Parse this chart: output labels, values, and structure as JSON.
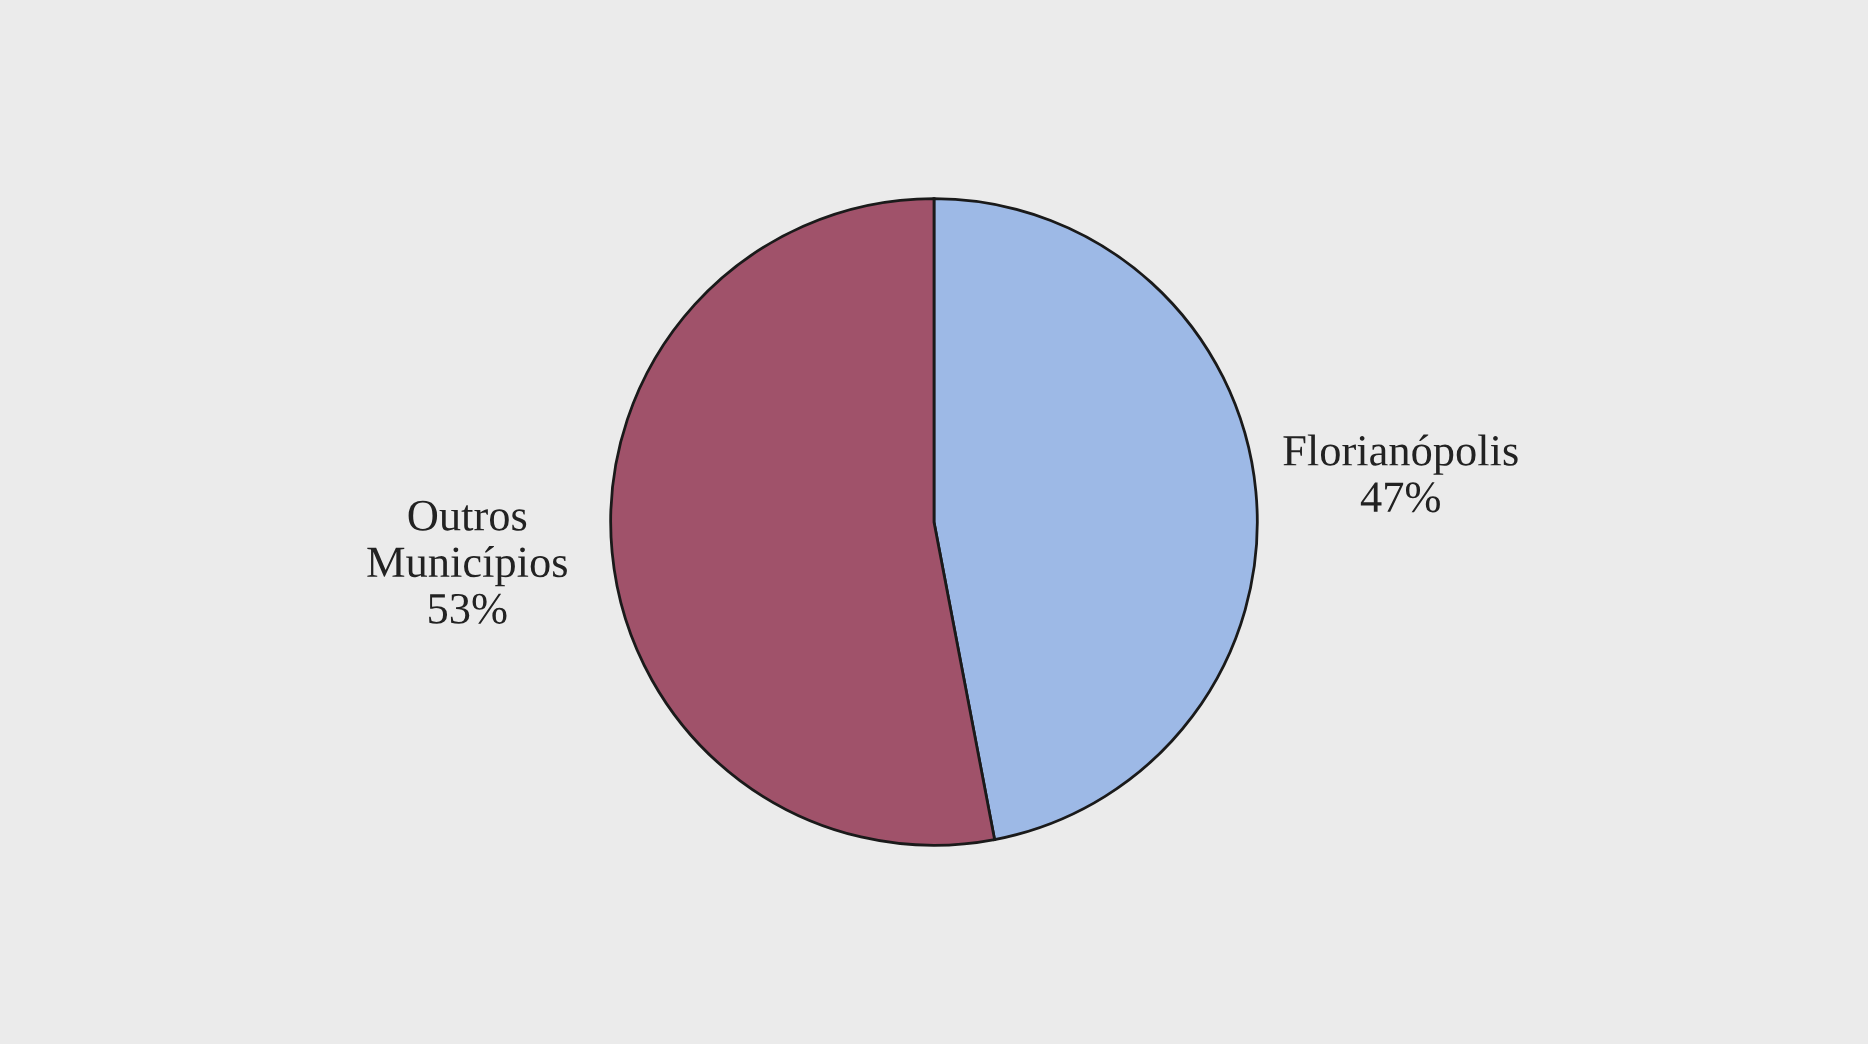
{
  "chart_data": {
    "type": "pie",
    "categories": [
      "Florianópolis",
      "Outros Municípios"
    ],
    "values": [
      47,
      53
    ],
    "value_labels": [
      "47%",
      "53%"
    ],
    "colors": [
      "#9db9e6",
      "#a0526a"
    ],
    "legend": false
  }
}
